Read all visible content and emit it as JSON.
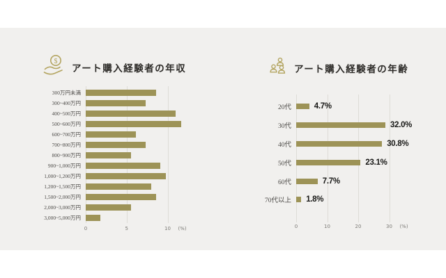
{
  "colors": {
    "panel_background": "#f1f0ee",
    "bar": "#9d9357",
    "icon_gold": "#b3a45f",
    "title_text": "#2d2b28",
    "data_label_text": "#181816"
  },
  "chart_data": [
    {
      "type": "bar",
      "orientation": "horizontal",
      "title": "アート購入経験者の年収",
      "icon": "hand-coin-icon",
      "categories": [
        "300万円未満",
        "300~400万円",
        "400~500万円",
        "500~600万円",
        "600~700万円",
        "700~800万円",
        "800~900万円",
        "900~1,000万円",
        "1,000~1,200万円",
        "1,200~1,500万円",
        "1,500~2,000万円",
        "2,000~3,000万円",
        "3,000~5,000万円"
      ],
      "values": [
        8.6,
        7.3,
        11.0,
        11.7,
        6.1,
        7.3,
        5.5,
        9.1,
        9.8,
        8.0,
        8.6,
        5.5,
        1.8
      ],
      "xticks": [
        0,
        5,
        10
      ],
      "xlabel_unit": "(%)",
      "xlim": [
        0,
        13
      ],
      "data_labels": false,
      "grid": true,
      "legend": false
    },
    {
      "type": "bar",
      "orientation": "horizontal",
      "title": "アート購入経験者の年齢",
      "icon": "people-icon",
      "categories": [
        "20代",
        "30代",
        "40代",
        "50代",
        "60代",
        "70代以上"
      ],
      "values": [
        4.7,
        32.0,
        30.8,
        23.1,
        7.7,
        1.8
      ],
      "data_label_texts": [
        "4.7%",
        "32.0%",
        "30.8%",
        "23.1%",
        "7.7%",
        "1.8%"
      ],
      "xticks": [
        0,
        10,
        20,
        30
      ],
      "xlabel_unit": "(%)",
      "xlim": [
        0,
        35
      ],
      "data_labels": true,
      "grid": true,
      "legend": false
    }
  ]
}
